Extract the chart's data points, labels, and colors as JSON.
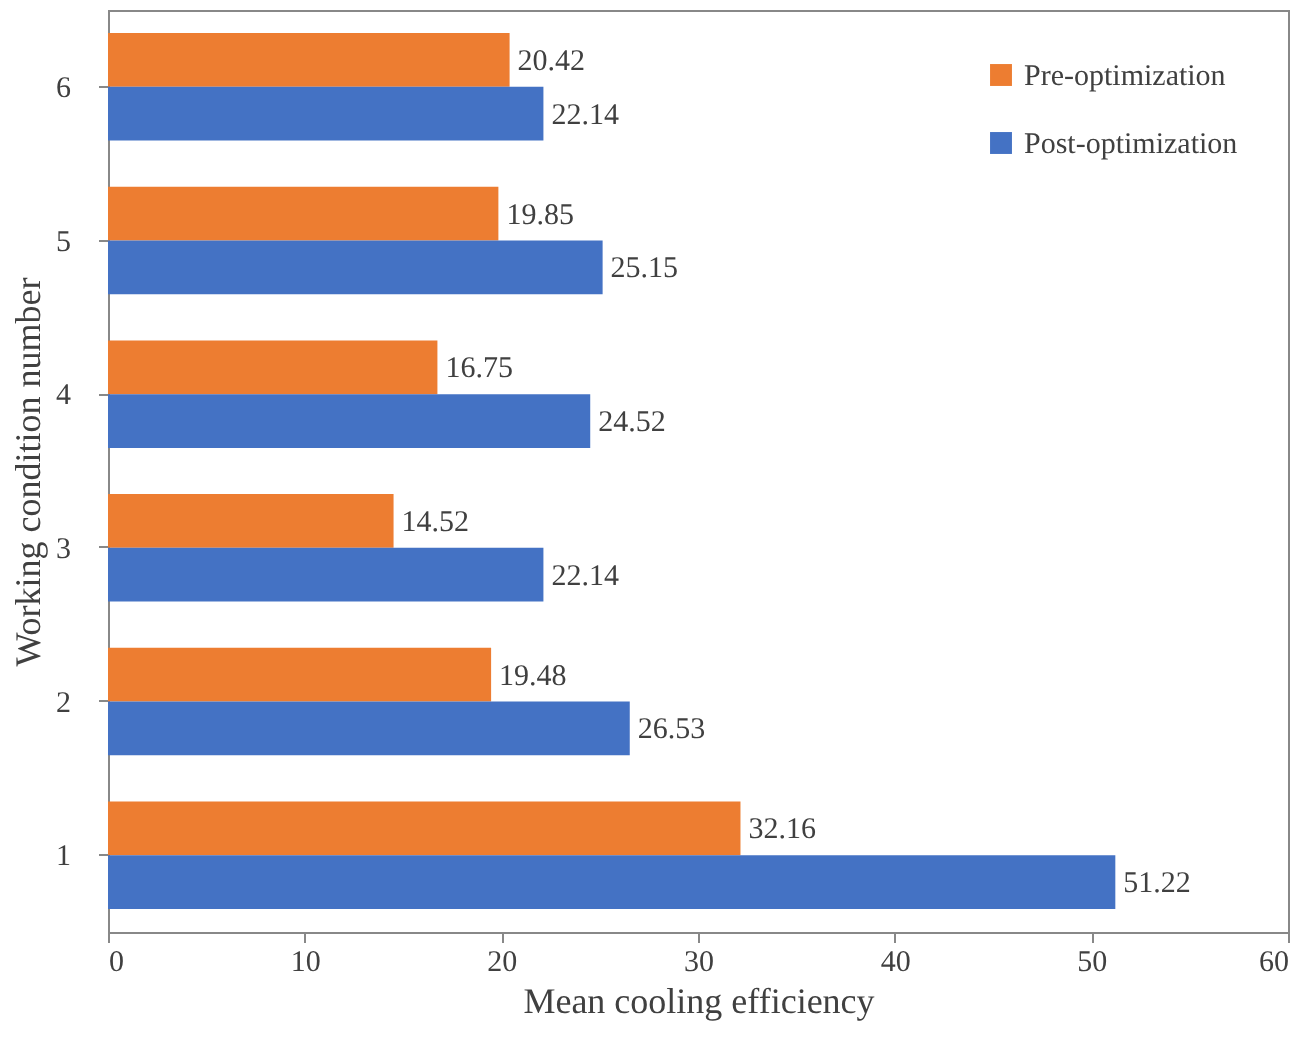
{
  "chart_data": {
    "type": "bar",
    "orientation": "horizontal",
    "xlabel": "Mean cooling efficiency",
    "ylabel": "Working condition number",
    "categories": [
      "6",
      "5",
      "4",
      "3",
      "2",
      "1"
    ],
    "series": [
      {
        "name": "Pre-optimization",
        "color": "#ed7d31",
        "values": [
          20.42,
          19.85,
          16.75,
          14.52,
          19.48,
          32.16
        ]
      },
      {
        "name": "Post-optimization",
        "color": "#4472c4",
        "values": [
          22.14,
          25.15,
          24.52,
          22.14,
          26.53,
          51.22
        ]
      }
    ],
    "xlim": [
      0,
      60
    ],
    "xticks": [
      0,
      10,
      20,
      30,
      40,
      50,
      60
    ],
    "grid": false,
    "legend": "top right",
    "data_labels": true
  }
}
